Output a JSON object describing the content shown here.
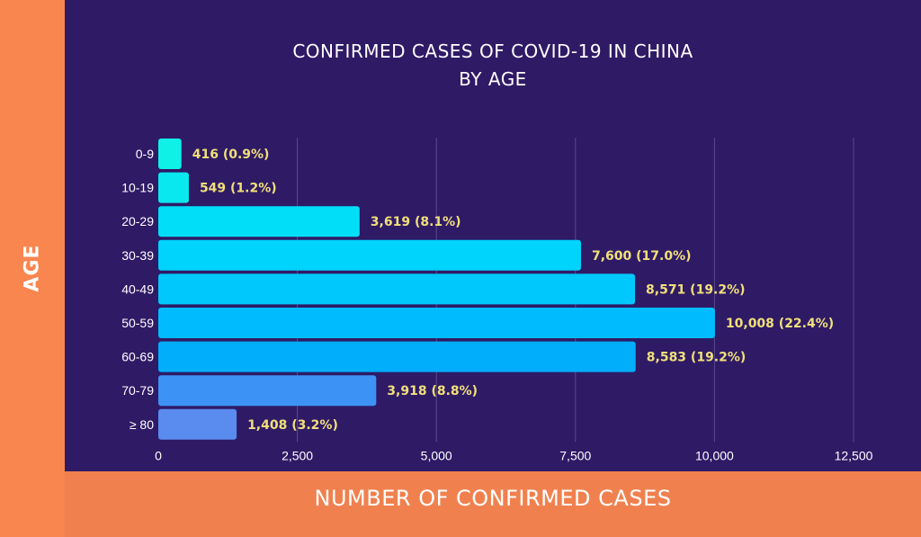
{
  "chart_data": {
    "type": "bar",
    "orientation": "horizontal",
    "title": "CONFIRMED CASES OF COVID-19 IN CHINA",
    "subtitle": "BY AGE",
    "xlabel": "NUMBER OF CONFIRMED CASES",
    "ylabel": "AGE",
    "categories": [
      "0-9",
      "10-19",
      "20-29",
      "30-39",
      "40-49",
      "50-59",
      "60-69",
      "70-79",
      "≥ 80"
    ],
    "values": [
      416,
      549,
      3619,
      7600,
      8571,
      10008,
      8583,
      3918,
      1408
    ],
    "data_labels": [
      "416 (0.9%)",
      "549 (1.2%)",
      "3,619 (8.1%)",
      "7,600 (17.0%)",
      "8,571 (19.2%)",
      "10,008 (22.4%)",
      "8,583 (19.2%)",
      "3,918 (8.8%)",
      "1,408 (3.2%)"
    ],
    "bar_colors": [
      "#0ff0e6",
      "#0ae8ef",
      "#00def8",
      "#00d3fc",
      "#00c8fd",
      "#00bcfe",
      "#00aefc",
      "#3d93f5",
      "#5a8bef"
    ],
    "xlim": [
      0,
      12500
    ],
    "xticks": [
      0,
      2500,
      5000,
      7500,
      10000,
      12500
    ],
    "xtick_labels": [
      "0",
      "2,500",
      "5,000",
      "7,500",
      "10,000",
      "12,500"
    ],
    "grid": "vertical"
  }
}
